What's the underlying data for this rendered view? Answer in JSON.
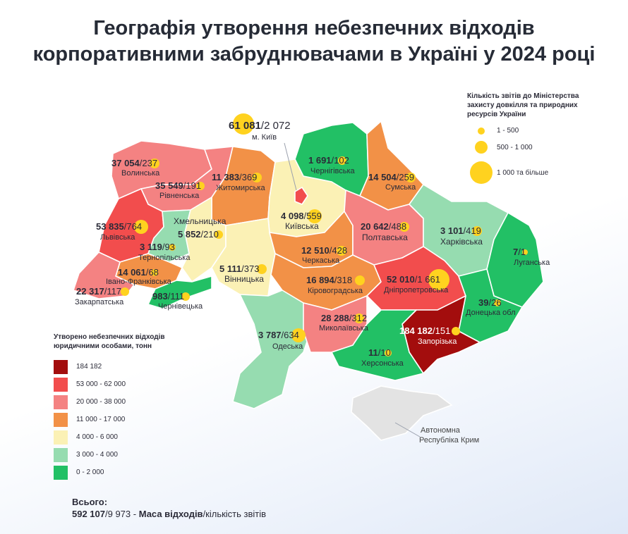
{
  "title_line1": "Географія утворення небезпечних відходів",
  "title_line2": "корпоративними забруднювачами в Україні у 2024 році",
  "colors": {
    "c184": "#a30d0d",
    "c53": "#f24d4d",
    "c20": "#f48282",
    "c11": "#f29147",
    "c4": "#fbf1b5",
    "c3": "#96dcb0",
    "c0": "#22c065",
    "bubble": "#ffd21f"
  },
  "bubble_legend": {
    "title_line1": "Кількість звітів до Міністерства",
    "title_line2": "захисту довкілля та природних",
    "title_line3": "ресурсів України",
    "items": [
      "1 - 500",
      "500 - 1 000",
      "1 000 та більше"
    ]
  },
  "color_legend": {
    "title_line1": "Утворено небезпечних відходів",
    "title_line2": "юридичними особами, тонн",
    "items": [
      "184 182",
      "53 000 - 62 000",
      "20 000 - 38 000",
      "11 000 - 17 000",
      "4 000 - 6 000",
      "3 000 - 4 000",
      "0 - 2 000"
    ]
  },
  "total": {
    "head": "Всього:",
    "value": "592 107",
    "reports": "/9 973 -",
    "mass_label": "Маса відходів",
    "count_label": "/кількість звітів"
  },
  "crimea_label_1": "Автономна",
  "crimea_label_2": "Республіка Крим",
  "regions": {
    "kyiv_city": {
      "name": "м. Київ",
      "value": "61 081",
      "reports": "2 072"
    },
    "volyn": {
      "name": "Волинська",
      "value": "37 054",
      "reports": "237"
    },
    "rivne": {
      "name": "Рівненська",
      "value": "35 549",
      "reports": "191"
    },
    "zhytomyr": {
      "name": "Житомирська",
      "value": "11 383",
      "reports": "369"
    },
    "chernihiv": {
      "name": "Чернігівська",
      "value": "1 691",
      "reports": "102"
    },
    "sumy": {
      "name": "Сумська",
      "value": "14 504",
      "reports": "259"
    },
    "lviv": {
      "name": "Львівська",
      "value": "53 835",
      "reports": "764"
    },
    "khmelnytskyi": {
      "name": "Хмельницька",
      "value": "5 852",
      "reports": "210"
    },
    "kyiv_obl": {
      "name": "Київська",
      "value": "4 098",
      "reports": "559"
    },
    "poltava": {
      "name": "Полтавська",
      "value": "20 642",
      "reports": "488"
    },
    "kharkiv": {
      "name": "Харківська",
      "value": "3 101",
      "reports": "419"
    },
    "ternopil": {
      "name": "Тернопільська",
      "value": "3 119",
      "reports": "93"
    },
    "cherkasy": {
      "name": "Черкаська",
      "value": "12 510",
      "reports": "428"
    },
    "luhansk": {
      "name": "Луганська",
      "value": "7",
      "reports": "1"
    },
    "ivano_frankivsk": {
      "name": "Івано-Франківська",
      "value": "14 061",
      "reports": "68"
    },
    "vinnytsia": {
      "name": "Вінницька",
      "value": "5 111",
      "reports": "373"
    },
    "kirovohrad": {
      "name": "Кіровоградська",
      "value": "16 894",
      "reports": "318"
    },
    "dnipro": {
      "name": "Дніпропетровська",
      "value": "52 010",
      "reports": "1 661"
    },
    "zakarpattia": {
      "name": "Закарпатська",
      "value": "22 317",
      "reports": "117"
    },
    "chernivtsi": {
      "name": "Чернівецька",
      "value": "983",
      "reports": "111"
    },
    "donetsk": {
      "name": "Донецька обл",
      "value": "39",
      "reports": "26"
    },
    "mykolaiv": {
      "name": "Миколаївська",
      "value": "28 288",
      "reports": "312"
    },
    "odesa": {
      "name": "Одеська",
      "value": "3 787",
      "reports": "634"
    },
    "zaporizhzhia": {
      "name": "Запорізька",
      "value": "184 182",
      "reports": "151"
    },
    "kherson": {
      "name": "Херсонська",
      "value": "11",
      "reports": "10"
    }
  }
}
